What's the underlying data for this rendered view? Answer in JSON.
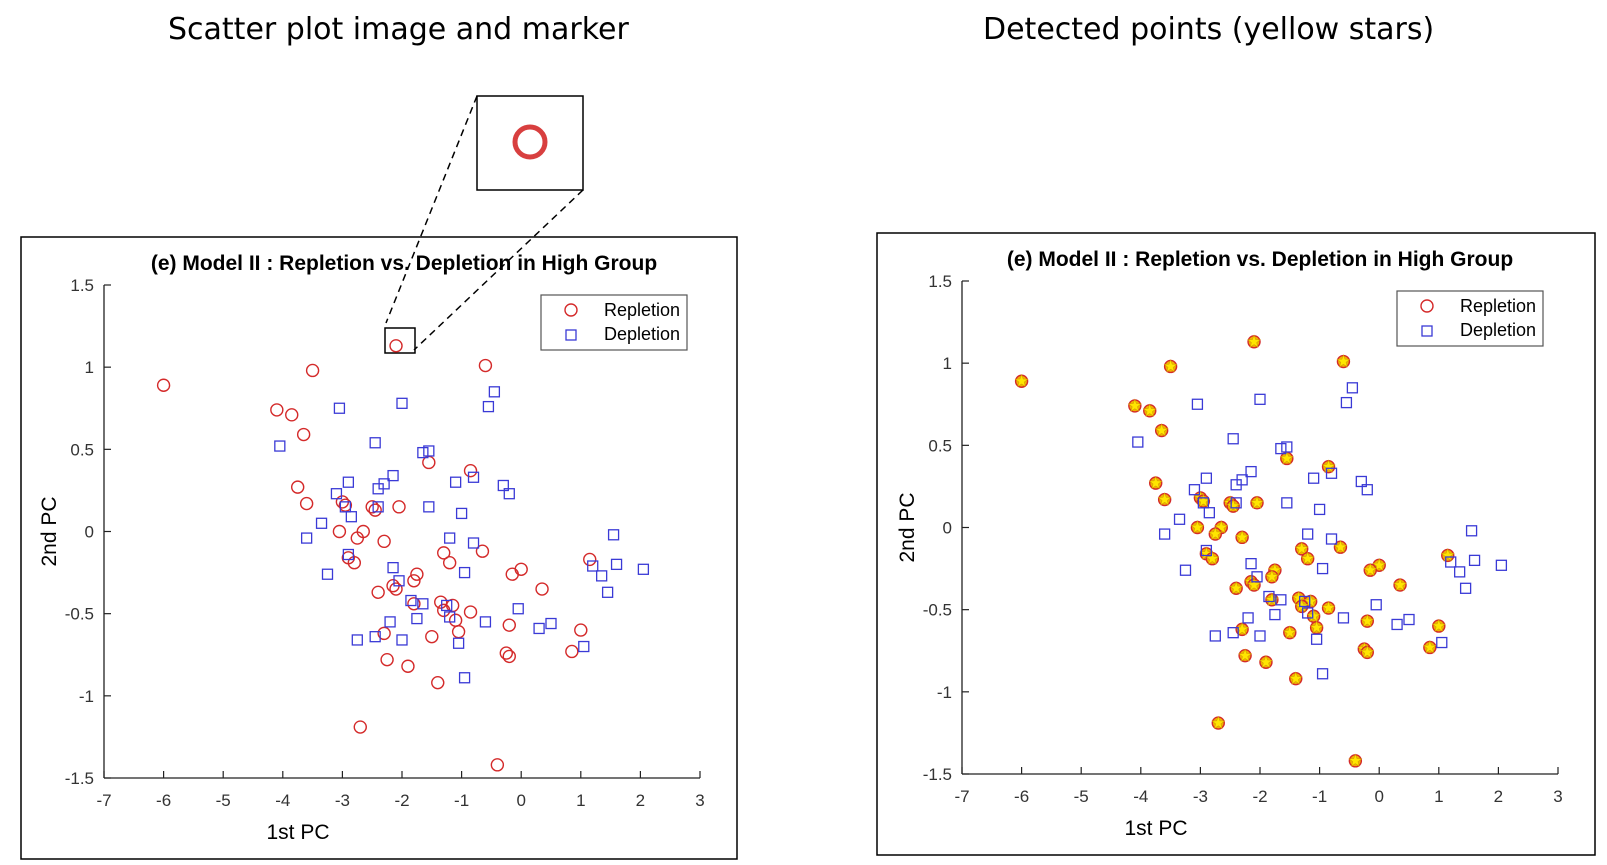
{
  "headings": {
    "left": "Scatter plot image and marker",
    "right": "Detected points (yellow stars)"
  },
  "colors": {
    "repletion": "#d42a2a",
    "depletion": "#3a3ad6",
    "star_fill": "#ffe600",
    "star_stroke": "#d4a000",
    "axis": "#222222"
  },
  "chart_data": [
    {
      "type": "scatter",
      "title": "(e) Model II : Repletion vs. Depletion in High Group",
      "xlabel": "1st PC",
      "ylabel": "2nd PC",
      "xlim": [
        -7,
        3
      ],
      "ylim": [
        -1.5,
        1.5
      ],
      "xticks": [
        "-7",
        "-6",
        "-5",
        "-4",
        "-3",
        "-2",
        "-1",
        "0",
        "1",
        "2",
        "3"
      ],
      "yticks": [
        "-1.5",
        "-1",
        "-0.5",
        "0",
        "0.5",
        "1",
        "1.5"
      ],
      "legend": "top-right",
      "highlighted_marker": "circle",
      "series": [
        {
          "name": "Repletion",
          "marker": "circle",
          "points": [
            [
              -6.0,
              0.89
            ],
            [
              -2.1,
              1.13
            ],
            [
              -3.5,
              0.98
            ],
            [
              -0.6,
              1.01
            ],
            [
              -4.1,
              0.74
            ],
            [
              -3.85,
              0.71
            ],
            [
              -3.65,
              0.59
            ],
            [
              -1.55,
              0.42
            ],
            [
              -0.85,
              0.37
            ],
            [
              -3.75,
              0.27
            ],
            [
              -3.6,
              0.17
            ],
            [
              -3.0,
              0.18
            ],
            [
              -2.95,
              0.16
            ],
            [
              -2.5,
              0.15
            ],
            [
              -2.45,
              0.13
            ],
            [
              -2.05,
              0.15
            ],
            [
              -2.65,
              0.0
            ],
            [
              -3.05,
              0.0
            ],
            [
              -2.75,
              -0.04
            ],
            [
              -2.3,
              -0.06
            ],
            [
              -1.3,
              -0.13
            ],
            [
              -0.65,
              -0.12
            ],
            [
              -1.2,
              -0.19
            ],
            [
              -2.9,
              -0.16
            ],
            [
              -2.8,
              -0.19
            ],
            [
              -1.75,
              -0.26
            ],
            [
              -1.8,
              -0.3
            ],
            [
              -2.15,
              -0.33
            ],
            [
              -2.1,
              -0.35
            ],
            [
              0.0,
              -0.23
            ],
            [
              -0.15,
              -0.26
            ],
            [
              0.35,
              -0.35
            ],
            [
              1.15,
              -0.17
            ],
            [
              -2.4,
              -0.37
            ],
            [
              -1.8,
              -0.44
            ],
            [
              -1.35,
              -0.43
            ],
            [
              -1.15,
              -0.45
            ],
            [
              -1.3,
              -0.48
            ],
            [
              -0.85,
              -0.49
            ],
            [
              -1.1,
              -0.54
            ],
            [
              -0.2,
              -0.57
            ],
            [
              -2.3,
              -0.62
            ],
            [
              -1.5,
              -0.64
            ],
            [
              -1.05,
              -0.61
            ],
            [
              1.0,
              -0.6
            ],
            [
              0.85,
              -0.73
            ],
            [
              -0.25,
              -0.74
            ],
            [
              -0.2,
              -0.76
            ],
            [
              -2.25,
              -0.78
            ],
            [
              -1.9,
              -0.82
            ],
            [
              -1.4,
              -0.92
            ],
            [
              -2.7,
              -1.19
            ],
            [
              -0.4,
              -1.42
            ]
          ]
        },
        {
          "name": "Depletion",
          "marker": "square",
          "points": [
            [
              -3.05,
              0.75
            ],
            [
              -2.0,
              0.78
            ],
            [
              -0.45,
              0.85
            ],
            [
              -0.55,
              0.76
            ],
            [
              -4.05,
              0.52
            ],
            [
              -2.45,
              0.54
            ],
            [
              -1.65,
              0.48
            ],
            [
              -1.55,
              0.49
            ],
            [
              -2.15,
              0.34
            ],
            [
              -2.3,
              0.29
            ],
            [
              -2.4,
              0.26
            ],
            [
              -1.1,
              0.3
            ],
            [
              -0.8,
              0.33
            ],
            [
              -0.3,
              0.28
            ],
            [
              -0.2,
              0.23
            ],
            [
              -3.1,
              0.23
            ],
            [
              -2.95,
              0.15
            ],
            [
              -2.9,
              0.3
            ],
            [
              -2.4,
              0.15
            ],
            [
              -1.55,
              0.15
            ],
            [
              -1.0,
              0.11
            ],
            [
              -2.85,
              0.09
            ],
            [
              -3.35,
              0.05
            ],
            [
              -3.6,
              -0.04
            ],
            [
              -1.2,
              -0.04
            ],
            [
              -0.8,
              -0.07
            ],
            [
              -2.9,
              -0.14
            ],
            [
              -2.15,
              -0.22
            ],
            [
              -0.95,
              -0.25
            ],
            [
              -3.25,
              -0.26
            ],
            [
              1.55,
              -0.02
            ],
            [
              1.2,
              -0.21
            ],
            [
              1.35,
              -0.27
            ],
            [
              1.6,
              -0.2
            ],
            [
              2.05,
              -0.23
            ],
            [
              1.45,
              -0.37
            ],
            [
              -2.05,
              -0.3
            ],
            [
              -1.85,
              -0.42
            ],
            [
              -1.65,
              -0.44
            ],
            [
              -1.25,
              -0.45
            ],
            [
              -1.75,
              -0.53
            ],
            [
              -1.2,
              -0.52
            ],
            [
              -2.2,
              -0.55
            ],
            [
              -0.6,
              -0.55
            ],
            [
              -0.05,
              -0.47
            ],
            [
              0.3,
              -0.59
            ],
            [
              0.5,
              -0.56
            ],
            [
              -2.75,
              -0.66
            ],
            [
              -2.45,
              -0.64
            ],
            [
              -2.0,
              -0.66
            ],
            [
              -1.05,
              -0.68
            ],
            [
              1.05,
              -0.7
            ],
            [
              -0.95,
              -0.89
            ]
          ]
        }
      ]
    },
    {
      "type": "scatter",
      "title": "(e) Model II : Repletion vs. Depletion in High Group",
      "xlabel": "1st PC",
      "ylabel": "2nd PC",
      "xlim": [
        -7,
        3
      ],
      "ylim": [
        -1.5,
        1.5
      ],
      "xticks": [
        "-7",
        "-6",
        "-5",
        "-4",
        "-3",
        "-2",
        "-1",
        "0",
        "1",
        "2",
        "3"
      ],
      "yticks": [
        "-1.5",
        "-1",
        "-0.5",
        "0",
        "0.5",
        "1",
        "1.5"
      ],
      "legend": "top-right",
      "detected_points_marker": "yellow-star",
      "series": [
        {
          "name": "Repletion",
          "marker": "circle",
          "detected": true,
          "same_points_as_left": true
        },
        {
          "name": "Depletion",
          "marker": "square",
          "detected": false,
          "same_points_as_left": true
        }
      ]
    }
  ]
}
